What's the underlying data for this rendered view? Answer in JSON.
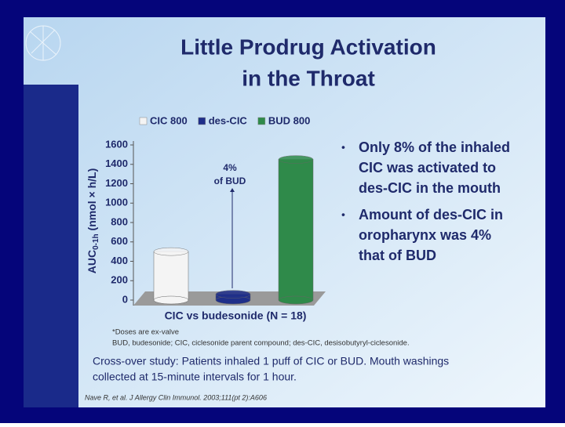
{
  "title": [
    "Little Prodrug Activation",
    "in the Throat"
  ],
  "chart_data": {
    "type": "bar",
    "categories": [
      null
    ],
    "series": [
      {
        "name": "CIC 800",
        "color": "#f4f4f4",
        "values": [
          500
        ]
      },
      {
        "name": "des-CIC",
        "color": "#1f2f8a",
        "values": [
          60
        ]
      },
      {
        "name": "BUD 800",
        "color": "#2f8a4a",
        "values": [
          1450
        ]
      }
    ],
    "ylim": [
      0,
      1600
    ],
    "yticks": [
      0,
      200,
      400,
      600,
      800,
      1000,
      1200,
      1400,
      1600
    ],
    "y_label": {
      "main": "AUC",
      "sub": "0-1h",
      "unit": " (nmol × h/L)"
    },
    "x_label": "CIC vs budesonide  (N = 18)",
    "annotation": [
      "4%",
      "of BUD"
    ]
  },
  "bullets": [
    [
      "Only 8% of the inhaled",
      "CIC was activated to",
      "des-CIC in the mouth"
    ],
    [
      "Amount of des-CIC in",
      "oropharynx was 4%",
      "that of BUD"
    ]
  ],
  "footnotes": [
    "*Doses are ex-valve",
    "BUD, budesonide; CIC, ciclesonide parent compound; des-CIC, desisobutyryl-ciclesonide."
  ],
  "study": [
    "Cross-over study: Patients inhaled 1 puff of CIC or BUD. Mouth washings",
    "collected at 15-minute intervals for 1 hour."
  ],
  "citation": "Nave R, et al. J Allergy Clin Immunol. 2003;111(pt 2):A606"
}
